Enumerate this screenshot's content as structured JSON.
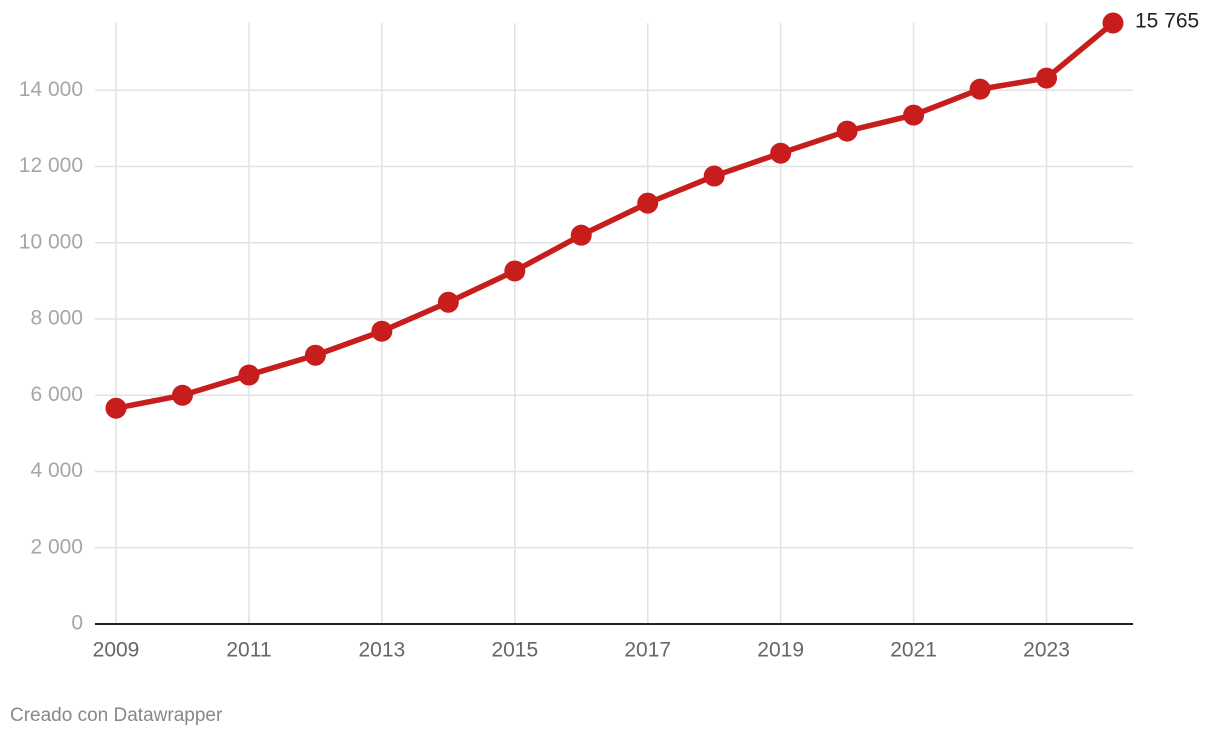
{
  "chart_data": {
    "type": "line",
    "x": [
      2009,
      2010,
      2011,
      2012,
      2013,
      2014,
      2015,
      2016,
      2017,
      2018,
      2019,
      2020,
      2021,
      2022,
      2023,
      2024
    ],
    "series": [
      {
        "color": "#c71e1d",
        "values": [
          5660,
          6000,
          6530,
          7050,
          7680,
          8440,
          9260,
          10200,
          11040,
          11750,
          12350,
          12930,
          13350,
          14030,
          14320,
          15765
        ],
        "value_labels": [
          null,
          null,
          null,
          null,
          null,
          null,
          null,
          null,
          null,
          null,
          null,
          null,
          null,
          null,
          null,
          "15 765"
        ]
      }
    ],
    "xlim": [
      2009,
      2024
    ],
    "xticks": [
      2009,
      2011,
      2013,
      2015,
      2017,
      2019,
      2021,
      2023
    ],
    "ylim": [
      0,
      15765
    ],
    "yticks": [
      0,
      {
        "value": 2000,
        "label": "2 000"
      },
      {
        "value": 4000,
        "label": "4 000"
      },
      {
        "value": 6000,
        "label": "6 000"
      },
      {
        "value": 8000,
        "label": "8 000"
      },
      {
        "value": 10000,
        "label": "10 000"
      },
      {
        "value": 12000,
        "label": "12 000"
      },
      {
        "value": 14000,
        "label": "14 000"
      }
    ],
    "grid": true,
    "footer": "Creado con Datawrapper"
  }
}
